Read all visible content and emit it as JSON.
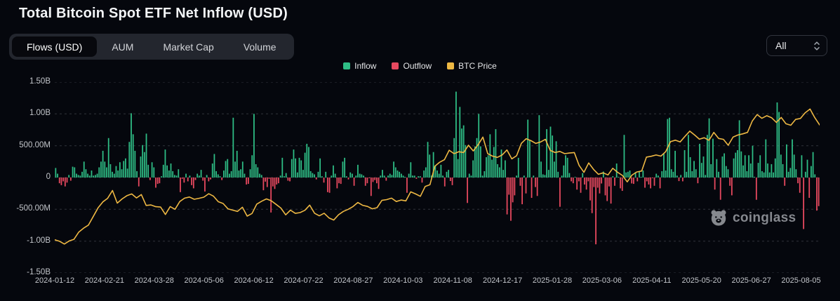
{
  "page": {
    "title": "Total Bitcoin Spot ETF Net Inflow (USD)"
  },
  "tabs": [
    {
      "label": "Flows (USD)",
      "active": true
    },
    {
      "label": "AUM",
      "active": false
    },
    {
      "label": "Market Cap",
      "active": false
    },
    {
      "label": "Volume",
      "active": false
    }
  ],
  "range_select": {
    "value": "All"
  },
  "legend": [
    {
      "label": "Inflow",
      "color": "#2ebd85"
    },
    {
      "label": "Outflow",
      "color": "#e8495f"
    },
    {
      "label": "BTC Price",
      "color": "#eeb843"
    }
  ],
  "watermark": {
    "text": "coinglass"
  },
  "colors": {
    "background": "#05070d",
    "inflow": "#2ebd85",
    "outflow": "#e8495f",
    "btc_line": "#eeb843",
    "grid": "#30333b",
    "axis_text": "#c3c6cb"
  },
  "chart_data": {
    "type": "bar",
    "title": "Total Bitcoin Spot ETF Net Inflow (USD)",
    "grid": "horizontal-dashed",
    "legend_position": "top-center",
    "legend_entries": [
      "Inflow",
      "Outflow",
      "BTC Price"
    ],
    "y_axis": {
      "ticks": [
        "1.50B",
        "1.00B",
        "500.00M",
        "0",
        "-500.00M",
        "-1.00B",
        "-1.50B"
      ],
      "min_millions": -1500,
      "max_millions": 1500
    },
    "x_axis": {
      "ticks": [
        "2024-01-12",
        "2024-02-21",
        "2024-03-28",
        "2024-05-06",
        "2024-06-12",
        "2024-07-22",
        "2024-08-27",
        "2024-10-03",
        "2024-11-08",
        "2024-12-17",
        "2025-01-28",
        "2025-03-06",
        "2025-04-11",
        "2025-05-20",
        "2025-06-27",
        "2025-08-05"
      ]
    },
    "series": [
      {
        "name": "Net Flow",
        "type": "bar",
        "unit": "USD millions",
        "values": [
          150,
          60,
          -90,
          -120,
          -60,
          -140,
          -80,
          40,
          -50,
          170,
          160,
          60,
          40,
          30,
          90,
          250,
          130,
          60,
          30,
          110,
          30,
          40,
          60,
          160,
          250,
          420,
          250,
          160,
          620,
          210,
          90,
          60,
          180,
          110,
          240,
          130,
          260,
          300,
          140,
          560,
          1010,
          680,
          420,
          100,
          -140,
          330,
          510,
          400,
          690,
          200,
          -40,
          240,
          160,
          -160,
          -100,
          -90,
          20,
          200,
          440,
          190,
          110,
          220,
          100,
          40,
          30,
          130,
          -230,
          -20,
          -80,
          60,
          -60,
          30,
          -120,
          -170,
          -40,
          60,
          30,
          120,
          -50,
          -220,
          40,
          -60,
          -30,
          220,
          370,
          100,
          50,
          20,
          -40,
          110,
          260,
          290,
          60,
          100,
          940,
          250,
          420,
          110,
          130,
          250,
          60,
          -110,
          -100,
          130,
          350,
          1000,
          210,
          160,
          60,
          40,
          -200,
          -65,
          -150,
          -20,
          -550,
          -140,
          -180,
          -110,
          -90,
          30,
          310,
          20,
          70,
          -50,
          -60,
          290,
          440,
          300,
          80,
          310,
          270,
          120,
          390,
          530,
          480,
          100,
          70,
          50,
          -30,
          90,
          300,
          20,
          -80,
          90,
          -230,
          -240,
          30,
          190,
          60,
          -170,
          -90,
          -100,
          250,
          310,
          20,
          -30,
          80,
          60,
          -130,
          30,
          200,
          60,
          50,
          30,
          -130,
          -90,
          -10,
          -290,
          -70,
          -40,
          -90,
          -180,
          30,
          120,
          30,
          -50,
          30,
          60,
          40,
          250,
          160,
          110,
          90,
          60,
          30,
          10,
          -240,
          60,
          240,
          30,
          30,
          -20,
          20,
          20,
          -80,
          110,
          160,
          560,
          360,
          30,
          400,
          190,
          110,
          60,
          200,
          30,
          -140,
          90,
          120,
          -55,
          -120,
          620,
          1350,
          290,
          1110,
          770,
          820,
          510,
          -400,
          60,
          30,
          270,
          490,
          620,
          1000,
          490,
          30,
          100,
          320,
          350,
          680,
          280,
          480,
          760,
          210,
          160,
          440,
          120,
          270,
          -580,
          -270,
          -680,
          -390,
          -280,
          30,
          310,
          -130,
          -420,
          30,
          -250,
          910,
          590,
          -320,
          30,
          -150,
          -290,
          980,
          250,
          50,
          40,
          760,
          120,
          800,
          660,
          250,
          570,
          90,
          -460,
          30,
          190,
          350,
          310,
          70,
          -60,
          -90,
          10,
          -190,
          -60,
          -240,
          70,
          -110,
          -190,
          -60,
          -360,
          -560,
          -150,
          -1050,
          -160,
          -250,
          -94,
          94,
          -280,
          -370,
          -140,
          -410,
          20,
          -130,
          220,
          10,
          -170,
          -210,
          670,
          80,
          90,
          110,
          -93,
          -100,
          84,
          -60,
          90,
          10,
          110,
          -160,
          -60,
          -110,
          -170,
          -10,
          -130,
          60,
          30,
          -170,
          100,
          380,
          110,
          920,
          940,
          130,
          90,
          420,
          30,
          -56,
          40,
          -60,
          430,
          90,
          670,
          320,
          100,
          260,
          130,
          -90,
          530,
          230,
          330,
          40,
          670,
          930,
          210,
          610,
          -190,
          290,
          90,
          -350,
          330,
          380,
          180,
          130,
          -130,
          -280,
          300,
          390,
          430,
          900,
          410,
          190,
          350,
          100,
          350,
          220,
          500,
          10,
          -350,
          230,
          350,
          100,
          80,
          600,
          220,
          80,
          210,
          80,
          300,
          1180,
          1030,
          360,
          210,
          -130,
          520,
          90,
          150,
          600,
          360,
          130,
          -90,
          -240,
          350,
          -810,
          90,
          280,
          -320,
          180,
          400,
          50,
          -520,
          -450
        ]
      },
      {
        "name": "BTC Price",
        "type": "line",
        "unit": "USD thousands",
        "axis_min_thousands": 22.3,
        "axis_max_thousands": 139.9,
        "values": [
          42.7,
          41.8,
          40.1,
          42.0,
          43.0,
          47.5,
          49.9,
          51.8,
          57.0,
          62.4,
          66.1,
          68.3,
          73.1,
          65.3,
          67.9,
          69.9,
          71.0,
          68.5,
          70.6,
          63.9,
          64.2,
          63.1,
          62.9,
          58.3,
          63.2,
          61.5,
          66.3,
          68.4,
          69.1,
          67.7,
          68.3,
          69.0,
          71.1,
          69.6,
          66.2,
          65.1,
          61.8,
          61.0,
          60.2,
          62.8,
          57.3,
          58.9,
          64.7,
          66.5,
          67.9,
          66.8,
          64.6,
          62.3,
          58.1,
          61.0,
          59.0,
          59.5,
          60.9,
          64.1,
          59.1,
          57.5,
          59.1,
          56.2,
          54.9,
          58.2,
          60.2,
          61.5,
          63.2,
          65.7,
          64.0,
          63.3,
          61.8,
          62.5,
          67.0,
          67.5,
          68.4,
          66.3,
          67.2,
          66.7,
          72.3,
          71.0,
          69.5,
          75.6,
          76.7,
          88.0,
          90.5,
          92.1,
          97.9,
          95.8,
          97.0,
          96.5,
          101.0,
          97.5,
          101.3,
          106.0,
          95.8,
          94.3,
          93.5,
          95.0,
          98.1,
          92.6,
          94.5,
          102.2,
          105.0,
          103.8,
          102.1,
          103.0,
          104.6,
          97.8,
          96.5,
          97.2,
          95.8,
          96.2,
          96.5,
          88.6,
          84.3,
          90.1,
          86.1,
          83.1,
          84.0,
          82.7,
          86.8,
          84.3,
          82.4,
          78.4,
          82.6,
          84.5,
          85.1,
          93.7,
          94.2,
          95.0,
          94.3,
          97.0,
          103.2,
          104.1,
          103.0,
          106.5,
          109.7,
          107.3,
          104.7,
          105.6,
          104.0,
          108.9,
          105.2,
          104.6,
          101.0,
          106.0,
          107.3,
          108.0,
          108.9,
          115.9,
          119.9,
          117.6,
          119.2,
          118.0,
          115.1,
          118.1,
          114.2,
          113.3,
          116.9,
          117.5,
          121.0,
          123.3,
          118.0,
          113.5
        ]
      }
    ]
  }
}
